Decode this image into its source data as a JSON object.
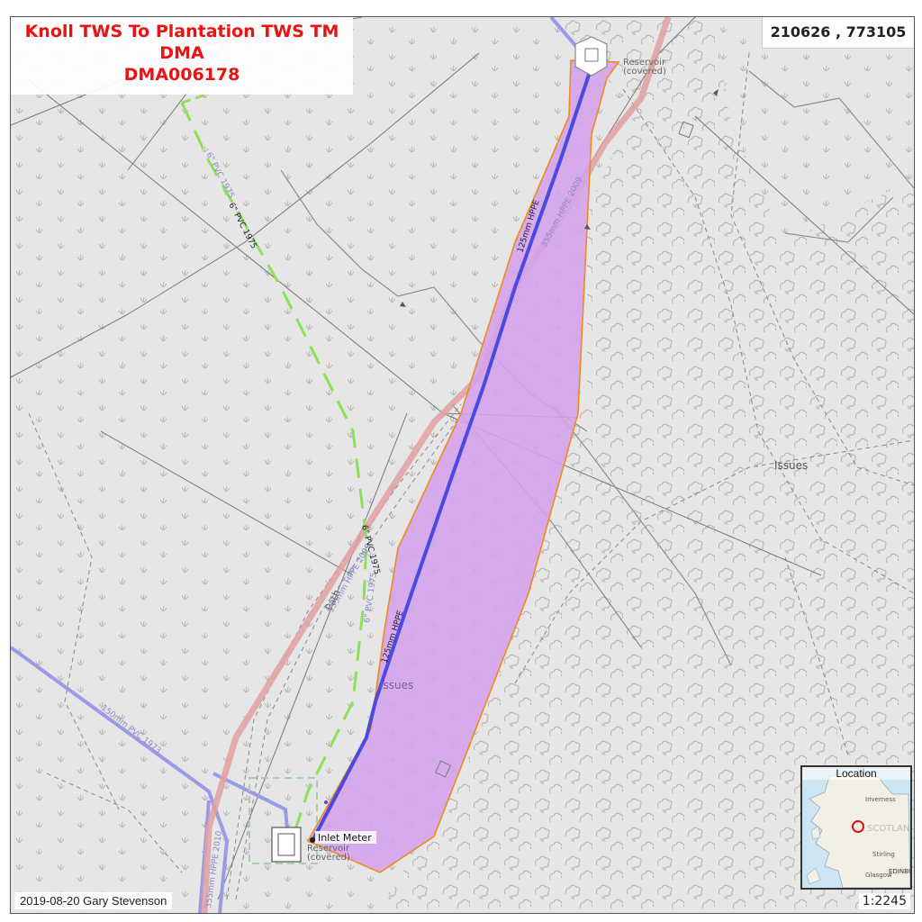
{
  "title": {
    "line1": "Knoll TWS To Plantation TWS TM",
    "line2": "DMA",
    "line3": "DMA006178"
  },
  "coordinates": "210626 , 773105",
  "credit": "2019-08-20 Gary Stevenson",
  "scale": "1:2245",
  "inset": {
    "title": "Location",
    "places": [
      "Inverness",
      "SCOTLAND",
      "Stirling",
      "Glasgow",
      "EDINBU"
    ]
  },
  "labels": {
    "reservoir_top_1": "Reservoir",
    "reservoir_top_2": "(covered)",
    "reservoir_bottom_1": "Reservoir",
    "reservoir_bottom_2": "(covered)",
    "inlet_meter": "Inlet Meter",
    "issues_right": "Issues",
    "issues_center": "Issues",
    "path": "Path",
    "pipe_125_upper": "125mm HPPE",
    "pipe_125_lower": "125mm HPPE",
    "pipe_355_upper": "355mm HPPE 2009",
    "pipe_355_mid": "355mm HPPE 2009",
    "pipe_355_bottom": "355mm HPPE 2010",
    "pvc_6_a": "6\" PVC 1975",
    "pvc_6_b": "6\" PVC 1975",
    "pvc_6_c": "6\" PVC 1975",
    "pvc_6_d": "6\" PVC 1975",
    "pvc_150": "150mm PVC 1973"
  },
  "colors": {
    "dma_fill": "#d4a2ec",
    "dma_outline": "#f08a1e",
    "main_pipe": "#4a4adf",
    "trunk_pipe": "#e09a9a",
    "pvc_dash": "#8ee05a",
    "blue_pipe": "#9a9ae6",
    "title_red": "#ee1111"
  }
}
